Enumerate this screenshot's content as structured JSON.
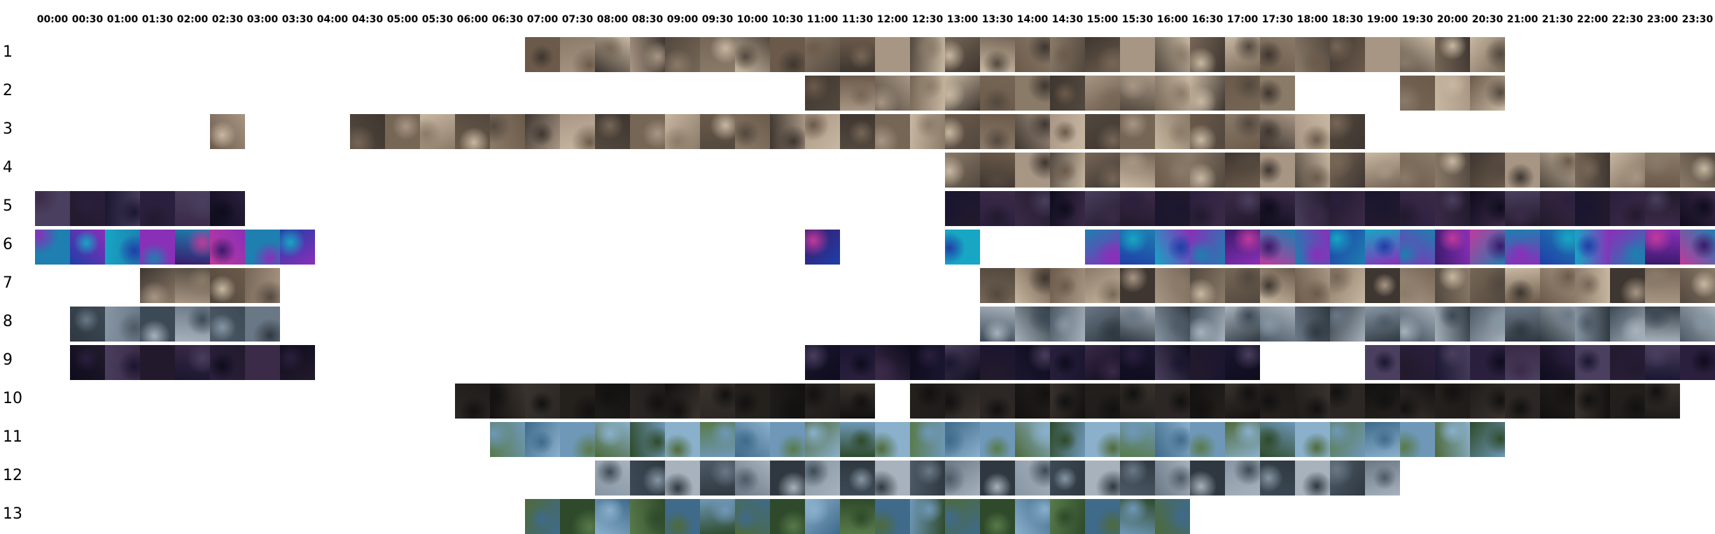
{
  "time_labels": [
    "00:00",
    "00:30",
    "01:00",
    "01:30",
    "02:00",
    "02:30",
    "03:00",
    "03:30",
    "04:00",
    "04:30",
    "05:00",
    "05:30",
    "06:00",
    "06:30",
    "07:00",
    "07:30",
    "08:00",
    "08:30",
    "09:00",
    "09:30",
    "10:00",
    "10:30",
    "11:00",
    "11:30",
    "12:00",
    "12:30",
    "13:00",
    "13:30",
    "14:00",
    "14:30",
    "15:00",
    "15:30",
    "16:00",
    "16:30",
    "17:00",
    "17:30",
    "18:00",
    "18:30",
    "19:00",
    "19:30",
    "20:00",
    "20:30",
    "21:00",
    "21:30",
    "22:00",
    "22:30",
    "23:00",
    "23:30"
  ],
  "days": [
    {
      "label": "1",
      "start": "07:00",
      "ranges": [
        [
          "07:00",
          "11:00"
        ],
        [
          "11:00",
          "21:00"
        ]
      ]
    },
    {
      "label": "2",
      "start": "11:00",
      "ranges": [
        [
          "11:00",
          "18:00"
        ],
        [
          "19:30",
          "21:00"
        ]
      ]
    },
    {
      "label": "3",
      "start": "02:30",
      "ranges": [
        [
          "02:30",
          "03:00"
        ],
        [
          "04:30",
          "19:00"
        ]
      ]
    },
    {
      "label": "4",
      "start": "13:00",
      "ranges": [
        [
          "13:00",
          "24:00"
        ]
      ]
    },
    {
      "label": "5",
      "start": "00:00",
      "ranges": [
        [
          "00:00",
          "03:00"
        ],
        [
          "13:00",
          "24:00"
        ]
      ]
    },
    {
      "label": "6",
      "start": "00:00",
      "ranges": [
        [
          "00:00",
          "04:00"
        ],
        [
          "11:00",
          "11:30"
        ],
        [
          "13:00",
          "13:30"
        ],
        [
          "15:00",
          "24:00"
        ]
      ]
    },
    {
      "label": "7",
      "start": "01:30",
      "ranges": [
        [
          "01:30",
          "03:30"
        ],
        [
          "13:30",
          "24:00"
        ]
      ]
    },
    {
      "label": "8",
      "start": "00:30",
      "ranges": [
        [
          "00:30",
          "03:30"
        ],
        [
          "13:30",
          "24:00"
        ]
      ]
    },
    {
      "label": "9",
      "start": "00:30",
      "ranges": [
        [
          "00:30",
          "04:00"
        ],
        [
          "11:00",
          "17:30"
        ],
        [
          "19:00",
          "24:00"
        ]
      ]
    },
    {
      "label": "10",
      "start": "06:00",
      "ranges": [
        [
          "06:00",
          "12:00"
        ],
        [
          "12:30",
          "23:30"
        ]
      ]
    },
    {
      "label": "11",
      "start": "06:30",
      "ranges": [
        [
          "06:30",
          "21:00"
        ]
      ]
    },
    {
      "label": "12",
      "start": "08:00",
      "ranges": [
        [
          "08:00",
          "19:30"
        ]
      ]
    },
    {
      "label": "13",
      "start": "07:00",
      "ranges": [
        [
          "07:00",
          "16:30"
        ]
      ]
    }
  ],
  "palettes": {
    "night": [
      "#1a1630",
      "#2a1f3d",
      "#3b2a48",
      "#0e0c1c",
      "#4a3f5e",
      "#221a2c"
    ],
    "neon": [
      "#1f3ea8",
      "#17a6c4",
      "#8a2fb8",
      "#3a1a6b",
      "#c03a9c",
      "#1e7fb0"
    ],
    "indoor": [
      "#6b5a4a",
      "#8a7a68",
      "#3e3630",
      "#a89684",
      "#52483e",
      "#766656",
      "#c8b8a2"
    ],
    "screen": [
      "#4d5a66",
      "#6a7886",
      "#2f3840",
      "#8796a4",
      "#3c4a56",
      "#a7b2bc"
    ],
    "outdoor": [
      "#3f6a8a",
      "#6f98b8",
      "#4e6a3a",
      "#2e4a2a",
      "#8ab0cc",
      "#587a4a"
    ],
    "dark": [
      "#1e1c1a",
      "#2c2724",
      "#121110",
      "#3a332e",
      "#24201c"
    ]
  },
  "day_palettes": [
    "indoor",
    "indoor",
    "indoor",
    "indoor",
    "night",
    "neon",
    "indoor",
    "screen",
    "night",
    "dark",
    "outdoor",
    "screen",
    "outdoor"
  ]
}
